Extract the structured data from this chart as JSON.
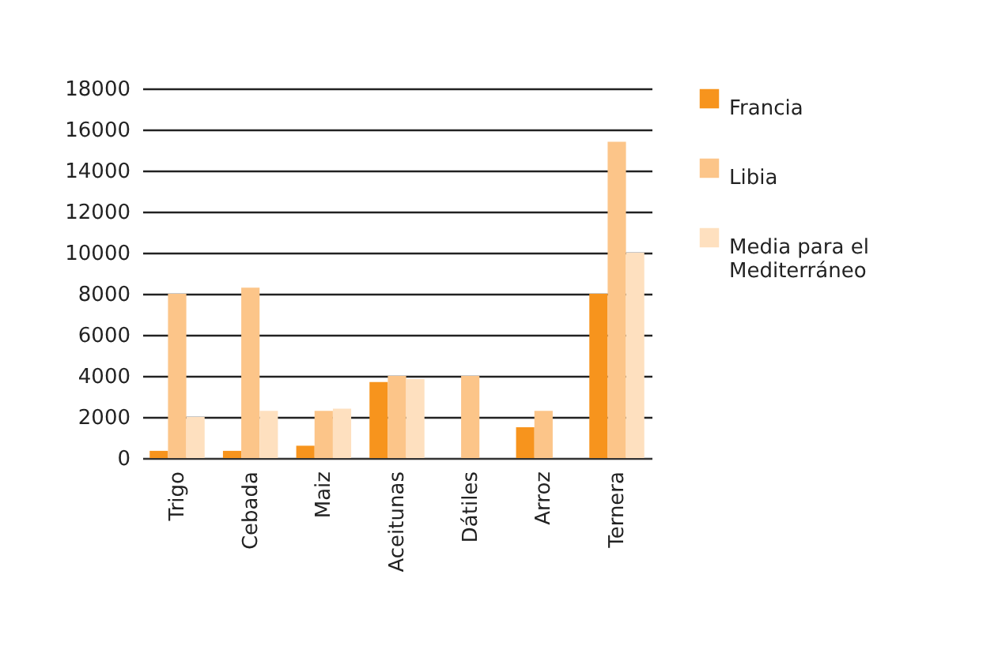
{
  "chart_data": {
    "type": "bar",
    "categories": [
      "Trigo",
      "Cebada",
      "Maiz",
      "Aceitunas",
      "Dátiles",
      "Arroz",
      "Ternera"
    ],
    "series": [
      {
        "name": "Francia",
        "color": "#f7941d",
        "values": [
          350,
          350,
          600,
          3700,
          null,
          1500,
          8000
        ]
      },
      {
        "name": "Libia",
        "color": "#fcc589",
        "values": [
          8000,
          8300,
          2300,
          4000,
          4000,
          2300,
          15400
        ]
      },
      {
        "name": "Media para el Mediterráneo",
        "color": "#fee0bf",
        "values": [
          2000,
          2300,
          2400,
          3850,
          null,
          null,
          10000
        ]
      }
    ],
    "ylim": [
      0,
      18000
    ],
    "yticks": [
      0,
      2000,
      4000,
      6000,
      8000,
      10000,
      12000,
      14000,
      16000,
      18000
    ],
    "grid": "y",
    "legend": "right"
  }
}
